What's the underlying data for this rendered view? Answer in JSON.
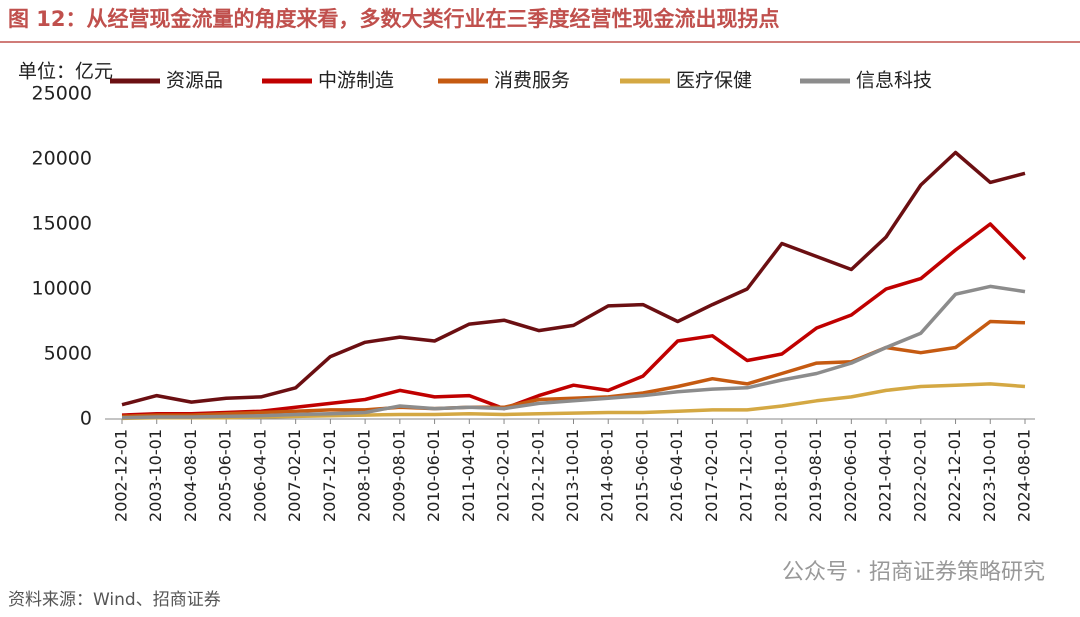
{
  "chart_data": {
    "type": "line",
    "title": "图 12：从经营现金流量的角度来看，多数大类行业在三季度经营性现金流出现拐点",
    "unit": "单位：亿元",
    "source": "资料来源：Wind、招商证券",
    "watermark": "公众号 · 招商证券策略研究",
    "categories": [
      "2002-12-01",
      "2003-10-01",
      "2004-08-01",
      "2005-06-01",
      "2006-04-01",
      "2007-02-01",
      "2007-12-01",
      "2008-10-01",
      "2009-08-01",
      "2010-06-01",
      "2011-04-01",
      "2012-02-01",
      "2012-12-01",
      "2013-10-01",
      "2014-08-01",
      "2015-06-01",
      "2016-04-01",
      "2017-02-01",
      "2017-12-01",
      "2018-10-01",
      "2019-08-01",
      "2020-06-01",
      "2021-04-01",
      "2022-02-01",
      "2022-12-01",
      "2023-10-01",
      "2024-08-01"
    ],
    "series": [
      {
        "name": "资源品",
        "color": "#6b0f12",
        "values": [
          1100,
          1800,
          1300,
          1600,
          1700,
          2400,
          4800,
          5900,
          6300,
          6000,
          7300,
          7600,
          6800,
          7200,
          8700,
          8800,
          7500,
          8800,
          10000,
          13500,
          12500,
          11500,
          14000,
          18000,
          20500,
          18200,
          18900
        ]
      },
      {
        "name": "中游制造",
        "color": "#c00000",
        "values": [
          300,
          400,
          400,
          500,
          600,
          900,
          1200,
          1500,
          2200,
          1700,
          1800,
          800,
          1800,
          2600,
          2200,
          3300,
          6000,
          6400,
          4500,
          5000,
          7000,
          8000,
          10000,
          10800,
          13000,
          15000,
          12300
        ]
      },
      {
        "name": "消费服务",
        "color": "#c55a11",
        "values": [
          200,
          300,
          300,
          400,
          500,
          600,
          700,
          700,
          900,
          800,
          900,
          900,
          1500,
          1600,
          1700,
          2000,
          2500,
          3100,
          2700,
          3500,
          4300,
          4400,
          5500,
          5100,
          5500,
          7500,
          7400
        ]
      },
      {
        "name": "医疗保健",
        "color": "#d4a843",
        "values": [
          50,
          100,
          100,
          100,
          150,
          200,
          250,
          300,
          350,
          350,
          400,
          350,
          400,
          450,
          500,
          500,
          600,
          700,
          700,
          1000,
          1400,
          1700,
          2200,
          2500,
          2600,
          2700,
          2500
        ]
      },
      {
        "name": "信息科技",
        "color": "#8c8c8c",
        "values": [
          100,
          150,
          150,
          200,
          250,
          350,
          400,
          500,
          1000,
          800,
          900,
          800,
          1200,
          1400,
          1600,
          1800,
          2100,
          2300,
          2400,
          3000,
          3500,
          4300,
          5500,
          6600,
          9600,
          10200,
          9800
        ]
      }
    ],
    "ylim": [
      0,
      25000
    ],
    "yticks": [
      0,
      5000,
      10000,
      15000,
      20000,
      25000
    ],
    "grid": false
  }
}
